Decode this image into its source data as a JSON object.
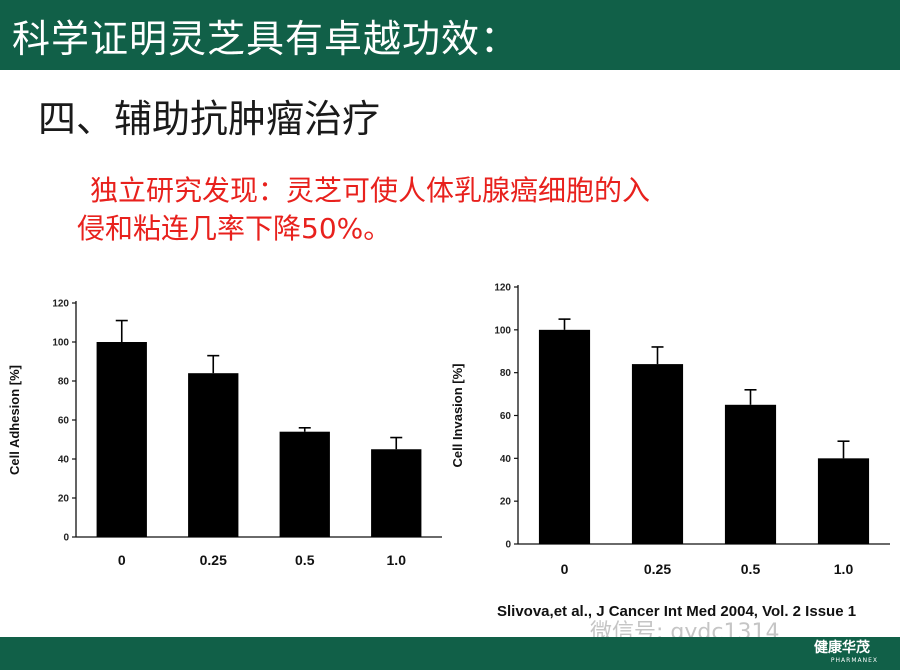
{
  "header": {
    "title": "科学证明灵芝具有卓越功效："
  },
  "section": {
    "title": "四、辅助抗肿瘤治疗"
  },
  "finding": {
    "line1": "独立研究发现：灵芝可使人体乳腺癌细胞的入",
    "line2": "侵和粘连几率下降50%。"
  },
  "chart_data": [
    {
      "type": "bar",
      "categories": [
        "0",
        "0.25",
        "0.5",
        "1.0"
      ],
      "values": [
        100,
        84,
        54,
        45
      ],
      "error": [
        11,
        9,
        2,
        6
      ],
      "ylabel": "Cell Adhesion [%]",
      "ylim": [
        0,
        120
      ],
      "yticks": [
        "0",
        "20",
        "40",
        "60",
        "80",
        "100",
        "120"
      ],
      "grid": false,
      "bar_color": "#000000"
    },
    {
      "type": "bar",
      "categories": [
        "0",
        "0.25",
        "0.5",
        "1.0"
      ],
      "values": [
        100,
        84,
        65,
        40
      ],
      "error": [
        5,
        8,
        7,
        8
      ],
      "ylabel": "Cell Invasion [%]",
      "ylim": [
        0,
        120
      ],
      "yticks": [
        "0",
        "20",
        "40",
        "60",
        "80",
        "100",
        "120"
      ],
      "grid": false,
      "bar_color": "#000000"
    }
  ],
  "citation": "Slivova,et al., J Cancer Int Med 2004, Vol. 2 Issue 1",
  "watermark": "微信号: gydc1314",
  "footer": {
    "brand": "健康华茂",
    "brand_sub": "PHARMANEX"
  },
  "colors": {
    "header_bg": "#116048",
    "finding_text": "#e8211d",
    "bar": "#000000"
  }
}
